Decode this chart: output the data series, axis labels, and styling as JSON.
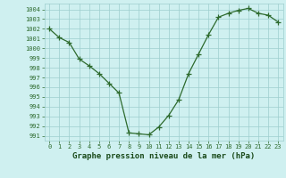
{
  "x": [
    0,
    1,
    2,
    3,
    4,
    5,
    6,
    7,
    8,
    9,
    10,
    11,
    12,
    13,
    14,
    15,
    16,
    17,
    18,
    19,
    20,
    21,
    22,
    23
  ],
  "y": [
    1002.0,
    1001.1,
    1000.6,
    998.9,
    998.2,
    997.4,
    996.4,
    995.4,
    991.3,
    991.2,
    991.1,
    991.9,
    993.1,
    994.7,
    997.4,
    999.4,
    1001.4,
    1003.2,
    1003.6,
    1003.9,
    1004.1,
    1003.6,
    1003.4,
    1002.7
  ],
  "line_color": "#2d6a2d",
  "marker": "+",
  "marker_size": 4,
  "bg_color": "#cff0f0",
  "grid_color": "#9ecece",
  "title": "Graphe pression niveau de la mer (hPa)",
  "ylim": [
    990.5,
    1004.6
  ],
  "yticks": [
    991,
    992,
    993,
    994,
    995,
    996,
    997,
    998,
    999,
    1000,
    1001,
    1002,
    1003,
    1004
  ],
  "xlim": [
    -0.5,
    23.5
  ],
  "xticks": [
    0,
    1,
    2,
    3,
    4,
    5,
    6,
    7,
    8,
    9,
    10,
    11,
    12,
    13,
    14,
    15,
    16,
    17,
    18,
    19,
    20,
    21,
    22,
    23
  ],
  "tick_fontsize": 5.0,
  "title_fontsize": 6.5,
  "title_color": "#1a4a1a"
}
